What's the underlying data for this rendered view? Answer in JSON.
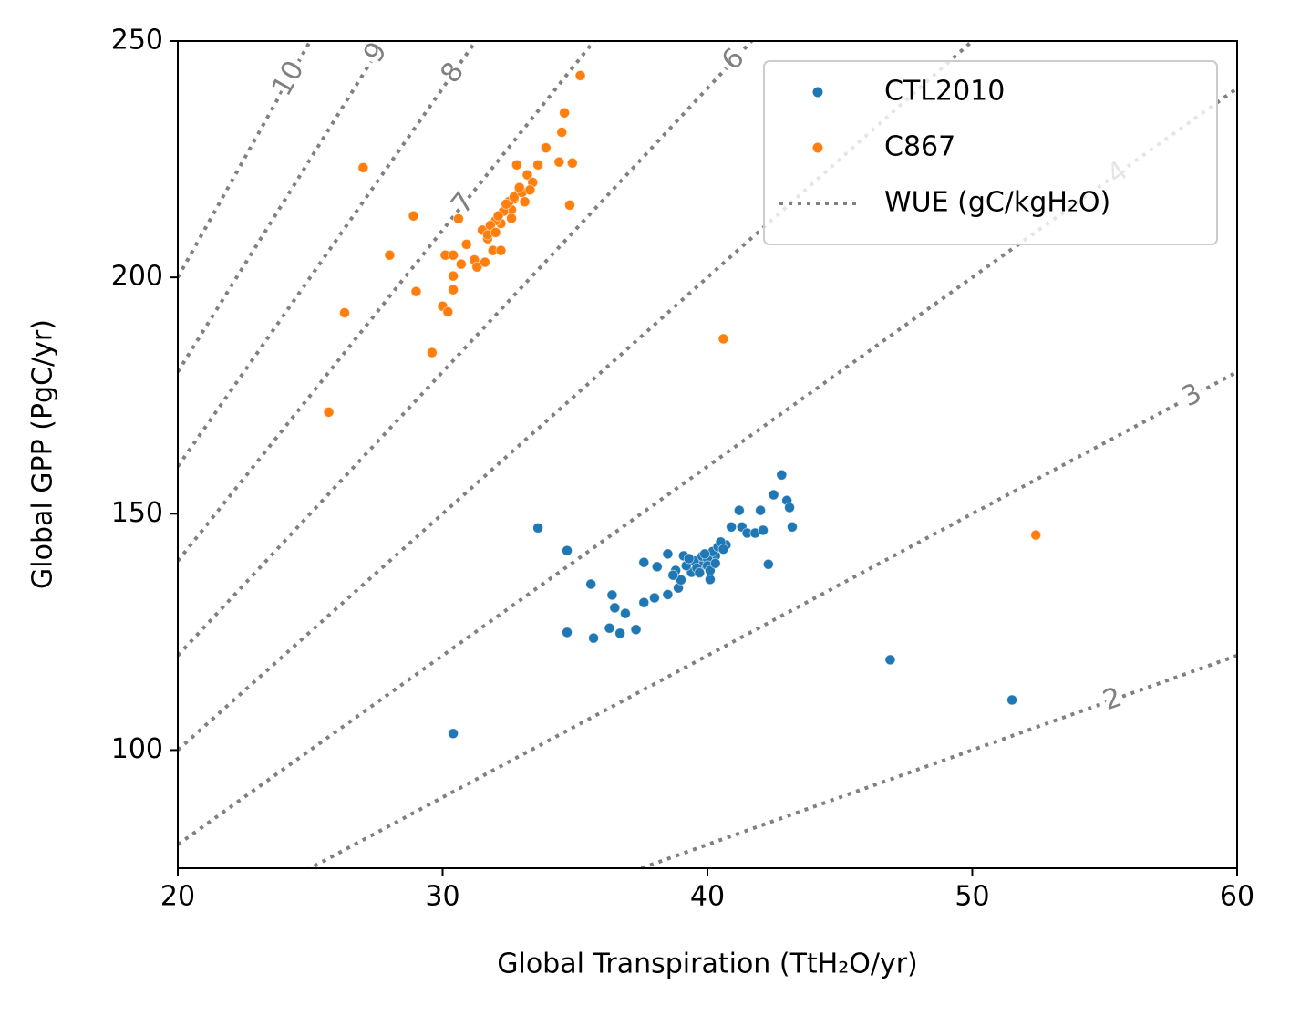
{
  "chart_data": {
    "type": "scatter",
    "xlabel": "Global Transpiration (TtH₂O/yr)",
    "ylabel": "Global GPP (PgC/yr)",
    "xlim": [
      20,
      60
    ],
    "ylim": [
      75,
      250
    ],
    "xticks": [
      20,
      30,
      40,
      50,
      60
    ],
    "yticks": [
      100,
      150,
      200,
      250
    ],
    "legend": "upper right",
    "series": [
      {
        "name": "CTL2010",
        "color": "#1f77b4",
        "x": [
          33.6,
          34.7,
          35.6,
          34.7,
          35.7,
          30.4,
          36.4,
          36.5,
          36.9,
          36.3,
          36.7,
          37.3,
          37.6,
          37.6,
          38.0,
          38.1,
          38.5,
          38.5,
          38.9,
          39.1,
          39.4,
          39.8,
          40.1,
          40.3,
          40.7,
          40.9,
          41.2,
          41.3,
          41.5,
          41.8,
          42.0,
          42.1,
          42.3,
          42.5,
          42.8,
          43.0,
          43.1,
          43.2,
          46.9,
          51.5,
          39.5,
          39.8,
          40.0,
          40.2,
          39.2,
          39.6,
          40.4,
          39.3,
          38.8,
          40.0,
          39.9,
          40.5,
          40.6,
          39.7,
          39.0,
          38.7,
          40.1,
          40.3
        ],
        "y": [
          147.0,
          142.2,
          135.1,
          124.9,
          123.7,
          103.5,
          132.8,
          130.1,
          128.9,
          125.8,
          124.7,
          125.5,
          139.7,
          131.2,
          132.2,
          138.8,
          141.5,
          132.9,
          134.3,
          141.1,
          137.6,
          139.1,
          136.1,
          141.1,
          143.4,
          147.2,
          150.7,
          147.2,
          145.9,
          145.9,
          150.7,
          146.5,
          139.3,
          154.0,
          158.2,
          152.8,
          151.3,
          147.2,
          119.1,
          110.6,
          140.0,
          141.0,
          140.5,
          142.0,
          139.0,
          138.5,
          143.0,
          140.5,
          138.0,
          139.0,
          141.5,
          144.0,
          142.5,
          137.5,
          136.0,
          137.0,
          138.0,
          139.5
        ]
      },
      {
        "name": "C867",
        "color": "#ff7f0e",
        "x": [
          25.7,
          26.3,
          27.0,
          28.0,
          28.9,
          29.0,
          29.6,
          30.0,
          30.2,
          30.1,
          30.4,
          30.4,
          30.4,
          30.6,
          30.7,
          30.9,
          31.2,
          31.3,
          31.6,
          31.7,
          31.9,
          32.2,
          32.2,
          32.6,
          32.7,
          32.9,
          32.8,
          33.2,
          33.4,
          33.6,
          33.9,
          34.4,
          34.5,
          34.6,
          34.9,
          34.8,
          35.2,
          40.6,
          52.4,
          31.5,
          32.0,
          32.3,
          32.5,
          32.7,
          33.0,
          32.1,
          31.8,
          32.4,
          32.9,
          33.1,
          32.6,
          31.7,
          33.3,
          32.0
        ],
        "y": [
          171.5,
          192.5,
          223.2,
          204.7,
          213.0,
          197.0,
          184.1,
          193.9,
          192.7,
          204.7,
          204.7,
          200.3,
          197.4,
          212.4,
          202.8,
          207.0,
          203.7,
          202.2,
          203.2,
          208.2,
          205.7,
          205.7,
          211.4,
          214.3,
          216.6,
          218.2,
          223.8,
          221.7,
          220.1,
          223.8,
          227.4,
          224.4,
          230.7,
          234.8,
          224.2,
          215.3,
          242.7,
          187.0,
          145.5,
          210.0,
          212.0,
          214.0,
          216.0,
          217.0,
          218.0,
          213.0,
          211.0,
          215.5,
          219.0,
          216.0,
          212.5,
          209.0,
          218.5,
          209.5
        ]
      }
    ],
    "contour": {
      "name": "WUE (gC/kgH₂O)",
      "color": "#808080",
      "levels": [
        2,
        3,
        4,
        5,
        6,
        7,
        8,
        9,
        10
      ],
      "labels": [
        10,
        9,
        8,
        7,
        6,
        4,
        3,
        2
      ]
    }
  }
}
